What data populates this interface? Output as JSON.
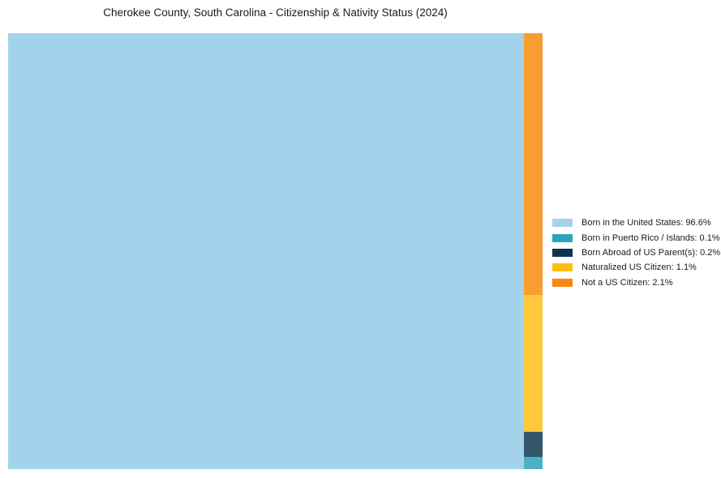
{
  "page": {
    "background_color": "#FFFFFF",
    "text_color": "#1A1A1A"
  },
  "chart_data": {
    "type": "treemap",
    "title": "Cherokee County, South Carolina - Citizenship & Nativity Status (2024)",
    "unit": "%",
    "categories": [
      "Born in the United States",
      "Born in Puerto Rico / Islands",
      "Born Abroad of US Parent(s)",
      "Naturalized US Citizen",
      "Not a US Citizen"
    ],
    "values": [
      96.6,
      0.1,
      0.2,
      1.1,
      2.1
    ],
    "legend_labels": [
      "Born in the United States: 96.6%",
      "Born in Puerto Rico / Islands: 0.1%",
      "Born Abroad of US Parent(s): 0.2%",
      "Naturalized US Citizen: 1.1%",
      "Not a US Citizen: 2.1%"
    ],
    "legend_colors": [
      "#A6D2E9",
      "#2AA4BF",
      "#0E3350",
      "#FEBE10",
      "#F8870D"
    ],
    "tile_colors": [
      "#A3D3EA",
      "#4BB1C6",
      "#33566B",
      "#FFC73C",
      "#F99D32"
    ],
    "legend_position": "right"
  }
}
